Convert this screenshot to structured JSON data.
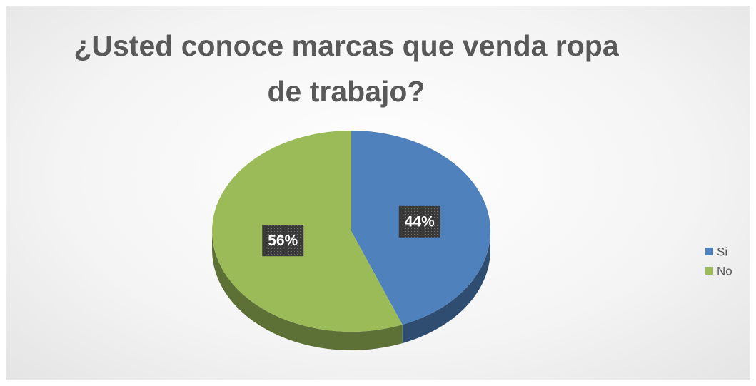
{
  "chart_data": {
    "type": "pie",
    "title": "¿Usted conoce marcas que venda ropa de trabajo?",
    "categories": [
      "Si",
      "No"
    ],
    "values": [
      44,
      56
    ],
    "value_labels": [
      "44%",
      "56%"
    ],
    "colors": [
      "#4f81bd",
      "#9bbb59"
    ],
    "legend": "right"
  }
}
